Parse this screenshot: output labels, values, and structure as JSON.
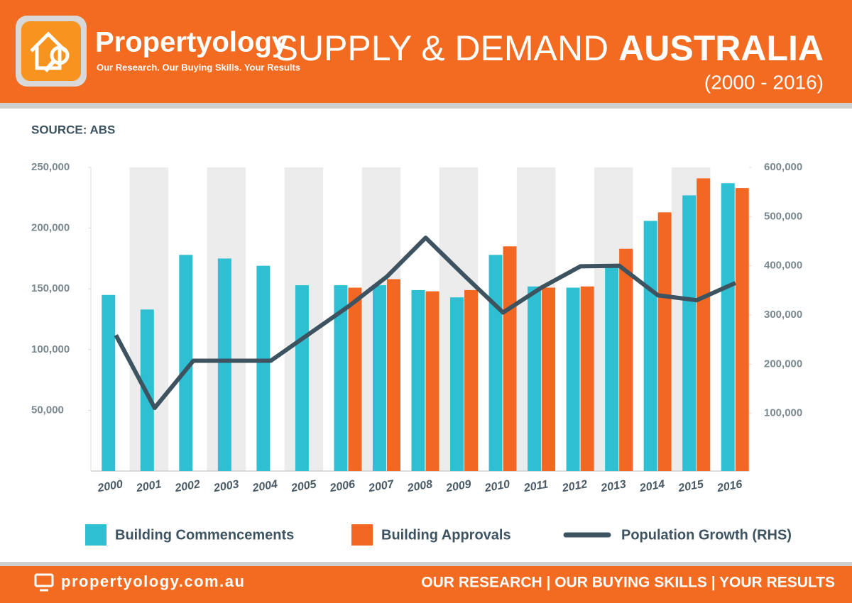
{
  "header": {
    "brand": "Propertyology",
    "tagline": "Our Research. Our Buying Skills. Your Results",
    "title_light": "SUPPLY & DEMAND",
    "title_bold": "AUSTRALIA",
    "subtitle": "(2000 - 2016)"
  },
  "footer": {
    "website": "propertyology.com.au",
    "slogan": "OUR RESEARCH | OUR BUYING SKILLS | YOUR RESULTS"
  },
  "chart_data": {
    "type": "bar_line",
    "source": "SOURCE: ABS",
    "categories": [
      "2000",
      "2001",
      "2002",
      "2003",
      "2004",
      "2005",
      "2006",
      "2007",
      "2008",
      "2009",
      "2010",
      "2011",
      "2012",
      "2013",
      "2014",
      "2015",
      "2016"
    ],
    "series": [
      {
        "name": "Building Commencements",
        "color": "#2fbfd3",
        "values": [
          145000,
          133000,
          178000,
          175000,
          169000,
          153000,
          153000,
          153000,
          149000,
          143000,
          178000,
          152000,
          151000,
          170000,
          206000,
          227000,
          237000
        ]
      },
      {
        "name": "Building Approvals",
        "color": "#f26722",
        "values": [
          null,
          null,
          null,
          null,
          null,
          null,
          151000,
          158000,
          148000,
          149000,
          185000,
          151000,
          152000,
          183000,
          213000,
          241000,
          233000
        ]
      },
      {
        "name": "Population Growth (RHS)",
        "color": "#3d5360",
        "axis": "y2",
        "values": [
          259000,
          111000,
          207000,
          207000,
          207000,
          262000,
          317000,
          378000,
          457000,
          380000,
          305000,
          356000,
          399000,
          400000,
          340000,
          330000,
          365000
        ]
      }
    ],
    "ylim": [
      0,
      250000
    ],
    "yticks": [
      {
        "value": 50000,
        "label": "50,000"
      },
      {
        "value": 100000,
        "label": "100,000"
      },
      {
        "value": 150000,
        "label": "150,000"
      },
      {
        "value": 200000,
        "label": "200,000"
      },
      {
        "value": 250000,
        "label": "250,000"
      }
    ],
    "y2lim": [
      0,
      600000
    ],
    "y2ticks": [
      {
        "value": 100000,
        "label": "100,000"
      },
      {
        "value": 200000,
        "label": "200,000"
      },
      {
        "value": 300000,
        "label": "300,000"
      },
      {
        "value": 400000,
        "label": "400,000"
      },
      {
        "value": 500000,
        "label": "500,000"
      },
      {
        "value": 600000,
        "label": "600,000"
      }
    ]
  }
}
